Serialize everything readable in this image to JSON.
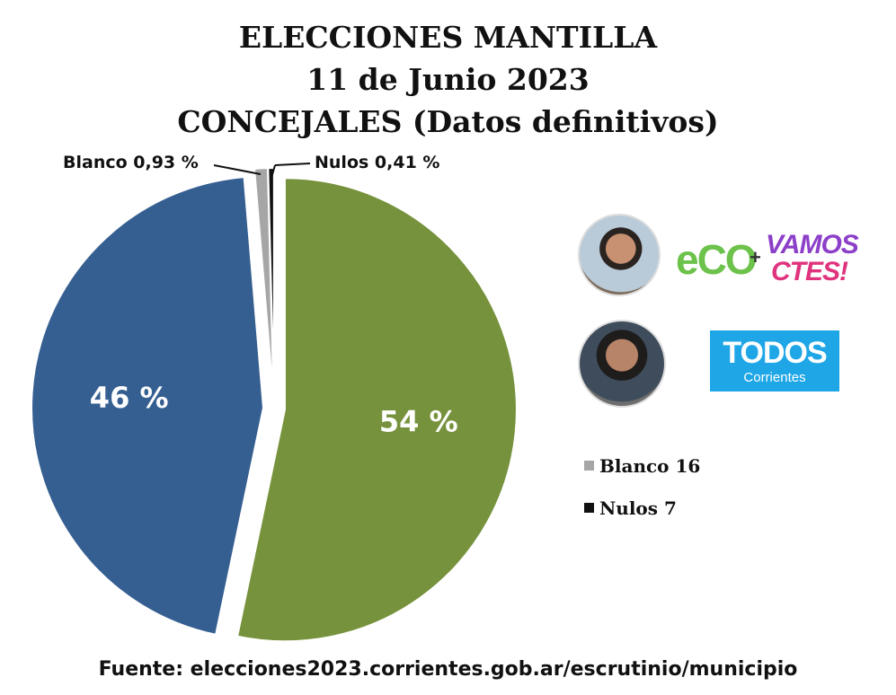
{
  "title": {
    "line1": "ELECCIONES MANTILLA",
    "line2": "11 de Junio 2023",
    "line3": "CONCEJALES (Datos definitivos)"
  },
  "chart_data": {
    "type": "pie",
    "slices": [
      {
        "label": "54 %",
        "value": 54,
        "color": "#76923c"
      },
      {
        "label": "46 %",
        "value": 46,
        "color": "#365f91"
      },
      {
        "label": "Blanco 0,93 %",
        "value": 0.93,
        "color": "#a6a6a6"
      },
      {
        "label": "Nulos 0,41 %",
        "value": 0.41,
        "color": "#111111"
      }
    ],
    "legend": [
      {
        "label": "Blanco 16",
        "color": "#a6a6a6"
      },
      {
        "label": "Nulos 7",
        "color": "#111111"
      }
    ],
    "legend_position": "right"
  },
  "callouts": {
    "blanco": "Blanco  0,93 %",
    "nulos": "Nulos  0,41 %"
  },
  "logos": {
    "eco": "eCO",
    "plus": "+",
    "vamos_line1": "VAMOS",
    "vamos_line2": "CTES!",
    "todos": "TODOS",
    "todos_sub": "Corrientes"
  },
  "source": "Fuente: elecciones2023.corrientes.gob.ar/escrutinio/municipio"
}
